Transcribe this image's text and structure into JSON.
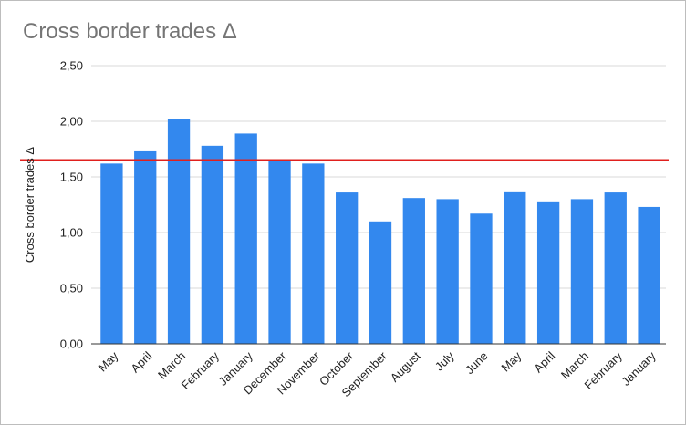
{
  "chart_data": {
    "type": "bar",
    "title": "Cross border trades Δ",
    "xlabel": "",
    "ylabel": "Cross border trades Δ",
    "categories": [
      "May",
      "April",
      "March",
      "February",
      "January",
      "December",
      "November",
      "October",
      "September",
      "August",
      "July",
      "June",
      "May",
      "April",
      "March",
      "February",
      "January"
    ],
    "values": [
      1.62,
      1.73,
      2.02,
      1.78,
      1.89,
      1.65,
      1.62,
      1.36,
      1.1,
      1.31,
      1.3,
      1.17,
      1.37,
      1.28,
      1.3,
      1.36,
      1.23
    ],
    "ylim": [
      0,
      2.5
    ],
    "yticks": [
      "0,00",
      "0,50",
      "1,00",
      "1,50",
      "2,00",
      "2,50"
    ],
    "ytick_values": [
      0,
      0.5,
      1.0,
      1.5,
      2.0,
      2.5
    ],
    "reference_line": 1.65,
    "grid": true,
    "colors": {
      "bar": "#3388ee",
      "reference_line": "#e0201e",
      "grid": "#d9d9d9",
      "axis": "#333333"
    }
  }
}
